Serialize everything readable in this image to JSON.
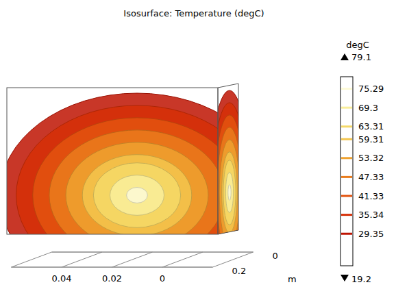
{
  "chart_data": {
    "type": "isosurface",
    "title": "Isosurface: Temperature (degC)",
    "colorbar_label": "degC",
    "colorbar_lim": [
      19.2,
      79.1
    ],
    "levels": [
      75.29,
      69.3,
      63.31,
      59.31,
      53.32,
      47.33,
      41.33,
      35.34,
      29.35
    ],
    "xlim": [
      0.06,
      -0.02
    ],
    "xticks": [
      0.04,
      0.02,
      0
    ],
    "ylim": [
      0,
      0.2
    ],
    "yticks": [
      0.2,
      0
    ],
    "unit_label": "m"
  }
}
